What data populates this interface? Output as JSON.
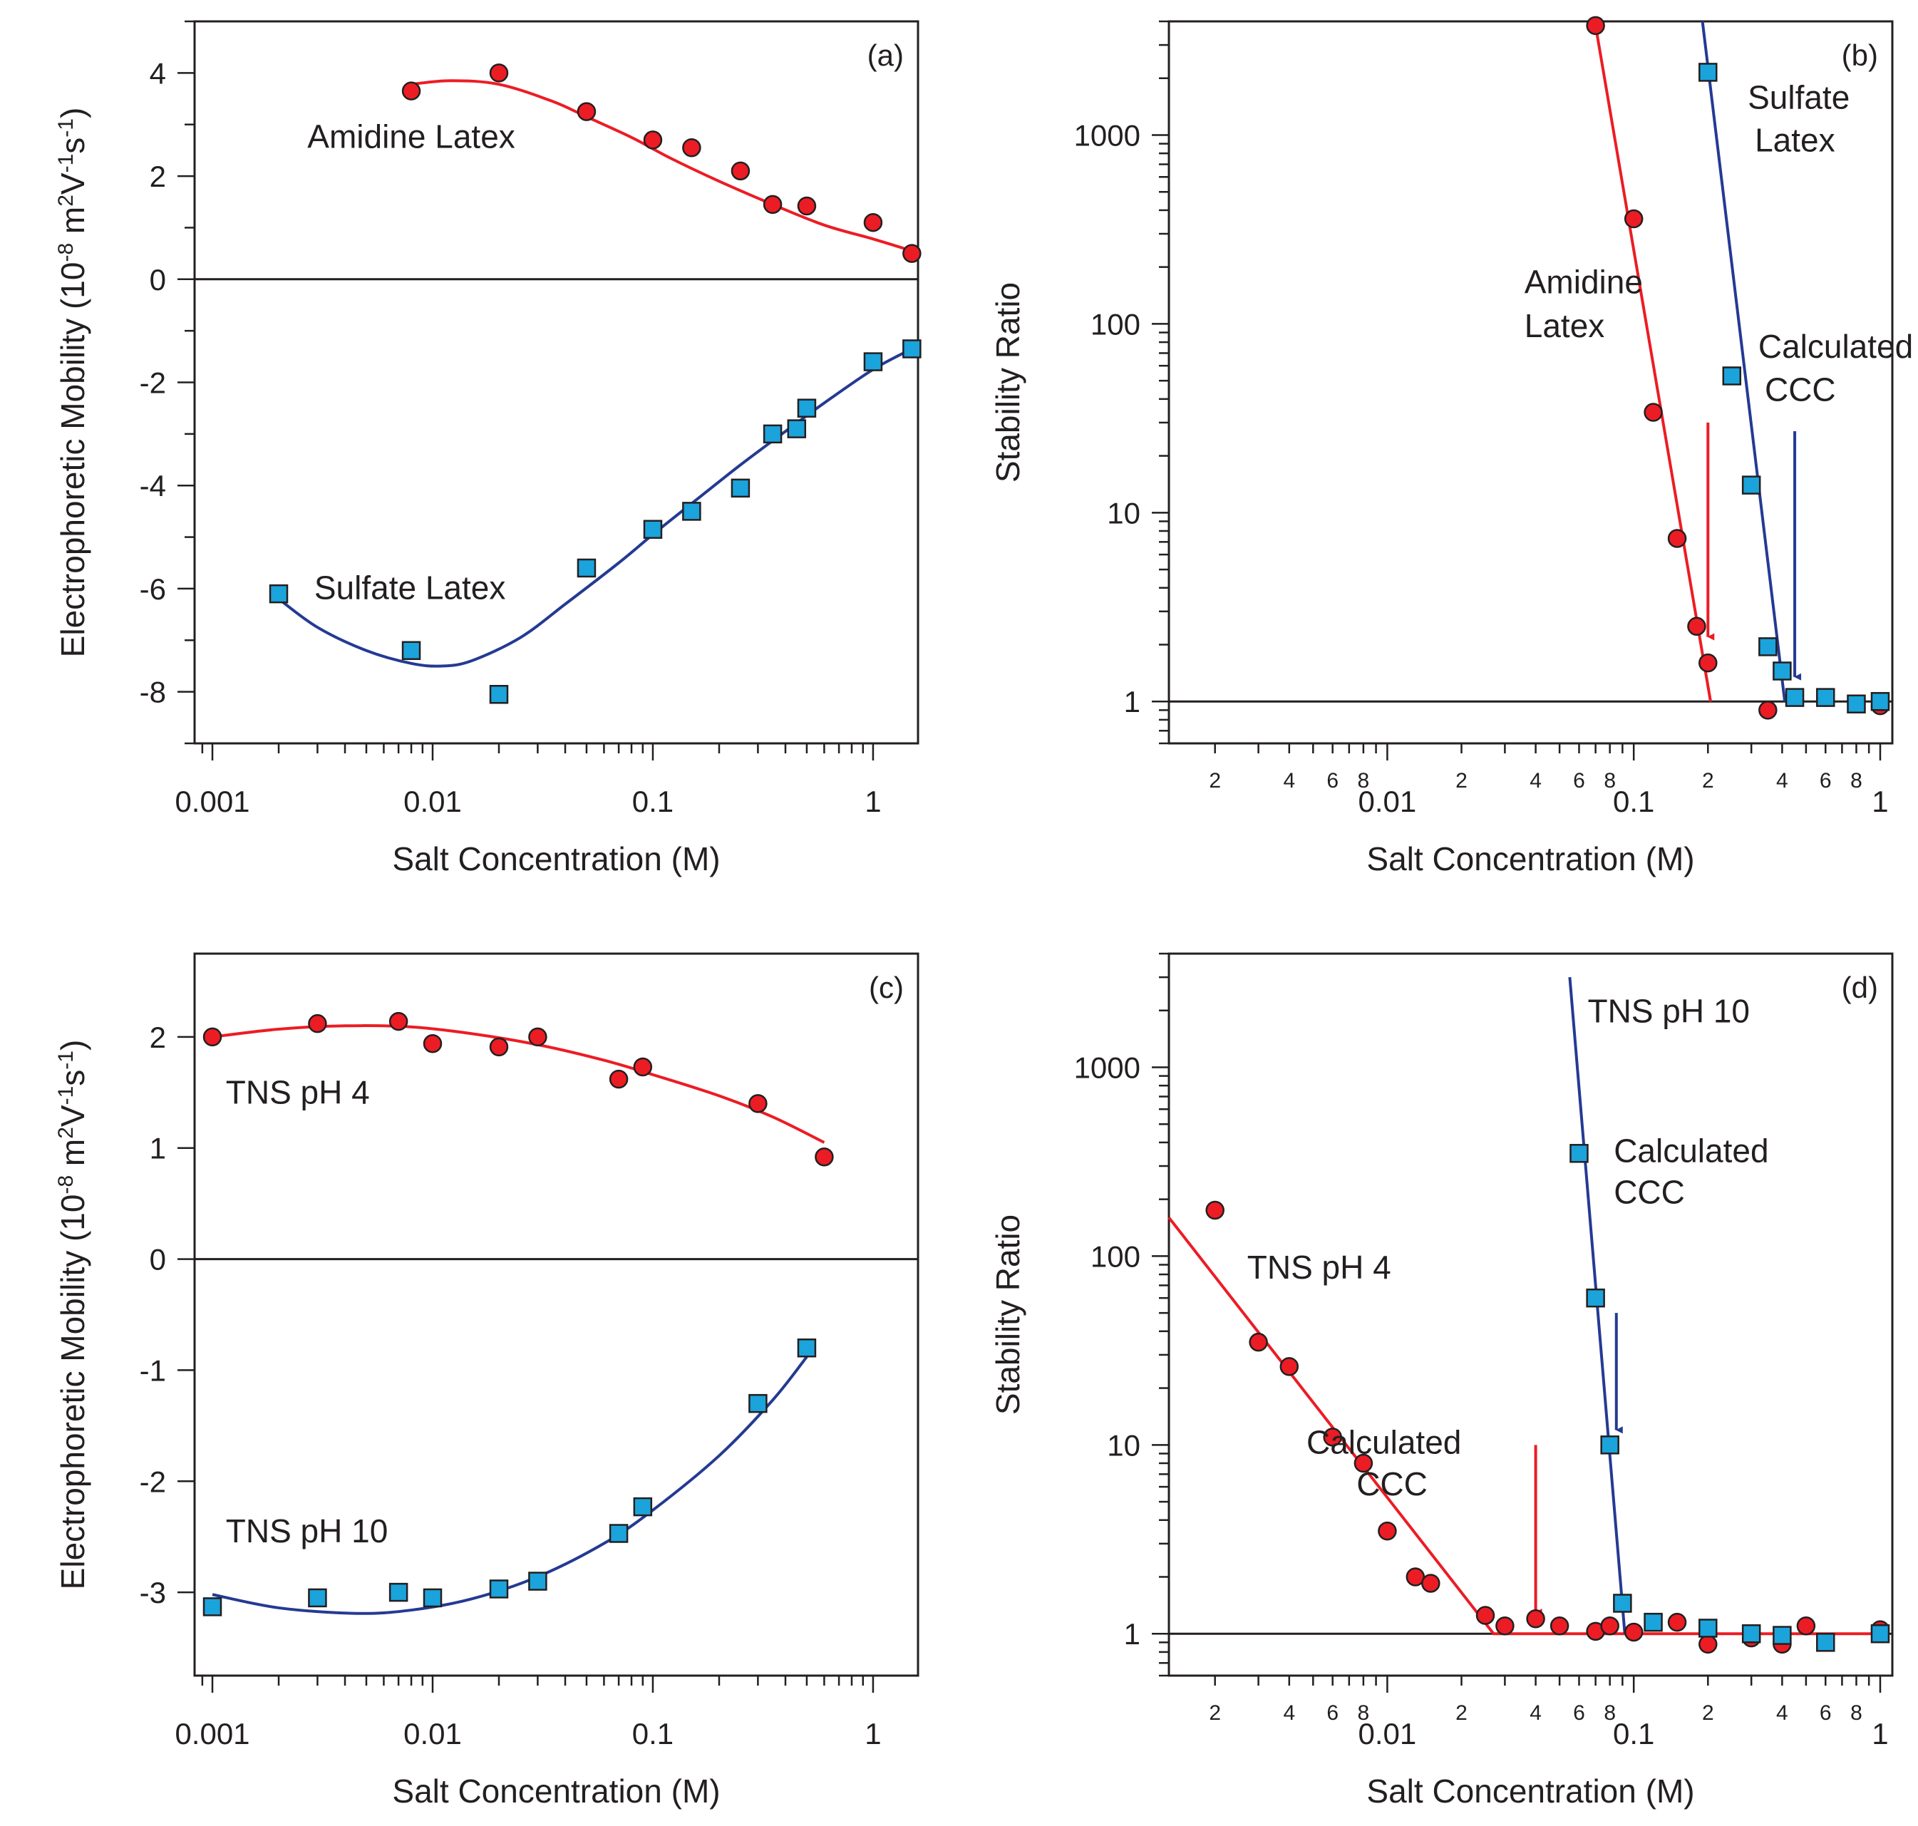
{
  "colors": {
    "red": "#ec1c24",
    "blue": "#243a93",
    "cyan": "#1ba3db",
    "axis": "#231f20"
  },
  "chart_data": [
    {
      "id": "a",
      "type": "scatter",
      "panel_label": "(a)",
      "xscale": "log",
      "xlim": [
        0.00083,
        1.6
      ],
      "ylim": [
        -9,
        5
      ],
      "xlabel": "Salt Concentration (M)",
      "ylabel": "Electrophoretic Mobility (10⁻⁸ m²V⁻¹s⁻¹)",
      "ylabel_parts": [
        "Electrophoretic Mobility (10",
        "-8",
        " m",
        "2",
        "V",
        "-1",
        "s",
        "-1",
        ")"
      ],
      "xticks": [
        0.001,
        0.01,
        0.1,
        1
      ],
      "xtick_labels": [
        "0.001",
        "0.01",
        "0.1",
        "1"
      ],
      "yticks": [
        -8,
        -6,
        -4,
        -2,
        0,
        2,
        4
      ],
      "ytick_labels": [
        "-8",
        "-6",
        "-4",
        "-2",
        "0",
        "2",
        "4"
      ],
      "hline": 0,
      "series": [
        {
          "name": "Amidine Latex",
          "marker": "circle",
          "color": "red",
          "x": [
            0.008,
            0.02,
            0.05,
            0.1,
            0.15,
            0.25,
            0.35,
            0.5,
            1.0,
            1.5
          ],
          "y": [
            3.65,
            4.0,
            3.25,
            2.7,
            2.55,
            2.1,
            1.45,
            1.42,
            1.1,
            0.5
          ],
          "fit": {
            "x": [
              0.008,
              0.012,
              0.02,
              0.035,
              0.05,
              0.08,
              0.12,
              0.2,
              0.35,
              0.6,
              1.0,
              1.5
            ],
            "y": [
              3.78,
              3.85,
              3.78,
              3.45,
              3.15,
              2.75,
              2.35,
              1.9,
              1.45,
              1.05,
              0.78,
              0.55
            ]
          }
        },
        {
          "name": "Sulfate Latex",
          "marker": "square",
          "color": "cyan",
          "x": [
            0.002,
            0.008,
            0.02,
            0.05,
            0.1,
            0.15,
            0.25,
            0.35,
            0.45,
            0.5,
            1.0,
            1.5
          ],
          "y": [
            -6.1,
            -7.2,
            -8.05,
            -5.6,
            -4.85,
            -4.5,
            -4.05,
            -3.0,
            -2.9,
            -2.5,
            -1.6,
            -1.35
          ],
          "fit": {
            "x": [
              0.002,
              0.003,
              0.005,
              0.008,
              0.011,
              0.015,
              0.025,
              0.04,
              0.07,
              0.1,
              0.15,
              0.25,
              0.4,
              0.6,
              1.0,
              1.5
            ],
            "y": [
              -6.2,
              -6.75,
              -7.2,
              -7.45,
              -7.5,
              -7.4,
              -6.95,
              -6.3,
              -5.5,
              -4.95,
              -4.35,
              -3.6,
              -2.95,
              -2.4,
              -1.75,
              -1.35
            ]
          }
        }
      ],
      "annotations": [
        {
          "text": "Amidine Latex",
          "x": 0.0027,
          "y": 2.55
        },
        {
          "text": "Sulfate Latex",
          "x": 0.0029,
          "y": -6.2
        }
      ]
    },
    {
      "id": "b",
      "type": "scatter",
      "panel_label": "(b)",
      "xscale": "log",
      "yscale": "log",
      "xlim": [
        0.0013,
        1.12
      ],
      "ylim": [
        0.6,
        4000
      ],
      "xlabel": "Salt Concentration (M)",
      "ylabel": "Stability Ratio",
      "xticks": [
        0.01,
        0.1,
        1
      ],
      "xtick_labels": [
        "0.01",
        "0.1",
        "1"
      ],
      "minor_tick_labels": [
        "2",
        "4",
        "6",
        "8"
      ],
      "yticks": [
        1,
        10,
        100,
        1000
      ],
      "ytick_labels": [
        "1",
        "10",
        "100",
        "1000"
      ],
      "hline": 1,
      "series": [
        {
          "name": "Amidine Latex",
          "marker": "circle",
          "color": "red",
          "x": [
            0.07,
            0.1,
            0.12,
            0.15,
            0.18,
            0.2,
            0.35,
            0.6,
            1.0
          ],
          "y": [
            3800,
            360,
            34,
            7.3,
            2.5,
            1.6,
            0.9,
            1.05,
            0.95
          ],
          "fit": {
            "x": [
              0.07,
              0.205
            ],
            "y": [
              3800,
              1.0
            ]
          }
        },
        {
          "name": "Sulfate Latex",
          "marker": "square",
          "color": "cyan",
          "x": [
            0.2,
            0.25,
            0.3,
            0.35,
            0.4,
            0.45,
            0.6,
            0.8,
            1.0
          ],
          "y": [
            2150,
            53,
            14,
            1.95,
            1.45,
            1.05,
            1.05,
            0.97,
            1.0
          ],
          "fit": {
            "x": [
              0.19,
              0.41
            ],
            "y": [
              4000,
              1.0
            ]
          }
        }
      ],
      "annotations": [
        {
          "text": "Amidine",
          "x": 0.036,
          "y": 145
        },
        {
          "text": "Latex",
          "x": 0.036,
          "y": 85
        },
        {
          "text": "Sulfate",
          "x": 0.29,
          "y": 1380
        },
        {
          "text": "Latex",
          "x": 0.31,
          "y": 820
        },
        {
          "text": "Calculated",
          "x": 0.32,
          "y": 66
        },
        {
          "text": "CCC",
          "x": 0.34,
          "y": 39
        }
      ],
      "arrows": [
        {
          "color": "red",
          "x": 0.2,
          "y_from": 30,
          "y_to": 2.2
        },
        {
          "color": "blue",
          "x": 0.45,
          "y_from": 27,
          "y_to": 1.35
        }
      ]
    },
    {
      "id": "c",
      "type": "scatter",
      "panel_label": "(c)",
      "xscale": "log",
      "xlim": [
        0.00083,
        1.6
      ],
      "ylim": [
        -3.75,
        2.75
      ],
      "xlabel": "Salt Concentration (M)",
      "ylabel": "Electrophoretic Mobility (10⁻⁸ m²V⁻¹s⁻¹)",
      "ylabel_parts": [
        "Electrophoretic Mobility (10",
        "-8",
        " m",
        "2",
        "V",
        "-1",
        "s",
        "-1",
        ")"
      ],
      "xticks": [
        0.001,
        0.01,
        0.1,
        1
      ],
      "xtick_labels": [
        "0.001",
        "0.01",
        "0.1",
        "1"
      ],
      "yticks": [
        -3,
        -2,
        -1,
        0,
        1,
        2
      ],
      "ytick_labels": [
        "-3",
        "-2",
        "-1",
        "0",
        "1",
        "2"
      ],
      "hline": 0,
      "series": [
        {
          "name": "TNS pH 4",
          "marker": "circle",
          "color": "red",
          "x": [
            0.001,
            0.003,
            0.007,
            0.01,
            0.02,
            0.03,
            0.07,
            0.09,
            0.3,
            0.6
          ],
          "y": [
            2.0,
            2.12,
            2.14,
            1.94,
            1.91,
            2.0,
            1.62,
            1.73,
            1.4,
            0.92
          ],
          "fit": {
            "x": [
              0.001,
              0.002,
              0.004,
              0.008,
              0.015,
              0.03,
              0.06,
              0.1,
              0.2,
              0.35,
              0.6
            ],
            "y": [
              2.0,
              2.07,
              2.1,
              2.09,
              2.03,
              1.93,
              1.79,
              1.66,
              1.47,
              1.28,
              1.05
            ]
          }
        },
        {
          "name": "TNS pH 10",
          "marker": "square",
          "color": "cyan",
          "x": [
            0.001,
            0.003,
            0.007,
            0.01,
            0.02,
            0.03,
            0.07,
            0.09,
            0.3,
            0.5
          ],
          "y": [
            -3.13,
            -3.05,
            -3.0,
            -3.05,
            -2.97,
            -2.9,
            -2.47,
            -2.23,
            -1.3,
            -0.8
          ],
          "fit": {
            "x": [
              0.001,
              0.002,
              0.0045,
              0.008,
              0.015,
              0.03,
              0.06,
              0.1,
              0.2,
              0.35,
              0.5
            ],
            "y": [
              -3.02,
              -3.14,
              -3.19,
              -3.16,
              -3.06,
              -2.86,
              -2.56,
              -2.26,
              -1.77,
              -1.27,
              -0.88
            ]
          }
        }
      ],
      "annotations": [
        {
          "text": "TNS pH 4",
          "x": 0.00115,
          "y": 1.4
        },
        {
          "text": "TNS pH 10",
          "x": 0.00115,
          "y": -2.55
        }
      ]
    },
    {
      "id": "d",
      "type": "scatter",
      "panel_label": "(d)",
      "xscale": "log",
      "yscale": "log",
      "xlim": [
        0.0013,
        1.12
      ],
      "ylim": [
        0.6,
        4000
      ],
      "xlabel": "Salt Concentration (M)",
      "ylabel": "Stability Ratio",
      "xticks": [
        0.01,
        0.1,
        1
      ],
      "xtick_labels": [
        "0.01",
        "0.1",
        "1"
      ],
      "minor_tick_labels": [
        "2",
        "4",
        "6",
        "8"
      ],
      "yticks": [
        1,
        10,
        100,
        1000
      ],
      "ytick_labels": [
        "1",
        "10",
        "100",
        "1000"
      ],
      "hline": 1,
      "series": [
        {
          "name": "TNS pH 4",
          "marker": "circle",
          "color": "red",
          "x": [
            0.002,
            0.003,
            0.004,
            0.006,
            0.008,
            0.01,
            0.013,
            0.015,
            0.025,
            0.03,
            0.04,
            0.05,
            0.07,
            0.08,
            0.1,
            0.15,
            0.2,
            0.3,
            0.4,
            0.5,
            1.0
          ],
          "y": [
            175,
            35,
            26,
            11,
            8,
            3.5,
            2.0,
            1.85,
            1.25,
            1.1,
            1.2,
            1.1,
            1.03,
            1.1,
            1.02,
            1.15,
            0.88,
            0.95,
            0.88,
            1.1,
            1.05
          ],
          "fit": {
            "x": [
              0.0013,
              0.027,
              1.0
            ],
            "y": [
              160,
              1.0,
              1.0
            ]
          }
        },
        {
          "name": "TNS pH 10",
          "marker": "square",
          "color": "cyan",
          "x": [
            0.06,
            0.07,
            0.08,
            0.09,
            0.12,
            0.2,
            0.3,
            0.4,
            0.6,
            1.0
          ],
          "y": [
            350,
            60,
            10,
            1.45,
            1.15,
            1.07,
            1.0,
            0.98,
            0.9,
            1.0
          ],
          "fit": {
            "x": [
              0.055,
              0.092
            ],
            "y": [
              3000,
              1.0
            ]
          }
        }
      ],
      "annotations": [
        {
          "text": "TNS pH 4",
          "x": 0.0027,
          "y": 76
        },
        {
          "text": "Calculated",
          "x": 0.0047,
          "y": 9.0
        },
        {
          "text": "CCC",
          "x": 0.0075,
          "y": 5.4
        },
        {
          "text": "TNS pH 10",
          "x": 0.065,
          "y": 1730
        },
        {
          "text": "Calculated",
          "x": 0.083,
          "y": 315
        },
        {
          "text": "CCC",
          "x": 0.083,
          "y": 190
        }
      ],
      "arrows": [
        {
          "color": "red",
          "x": 0.04,
          "y_from": 10,
          "y_to": 1.3
        },
        {
          "color": "blue",
          "x": 0.085,
          "y_from": 50,
          "y_to": 12
        }
      ]
    }
  ]
}
